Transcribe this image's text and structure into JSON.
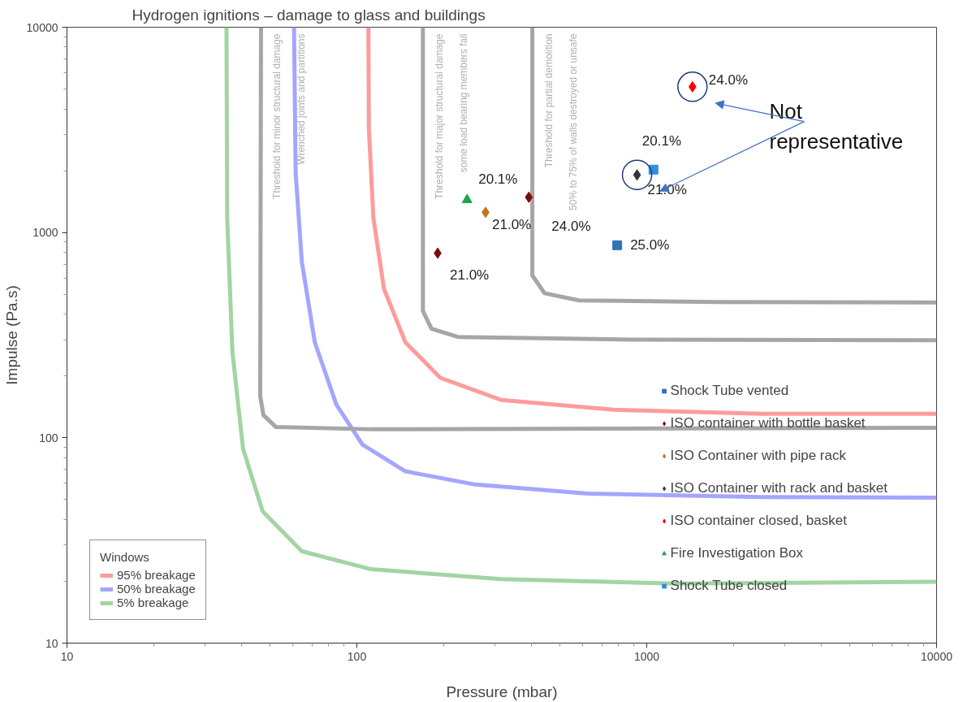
{
  "chart_data": {
    "type": "scatter",
    "title": "Hydrogen ignitions – damage to glass and buildings",
    "xlabel": "Pressure (mbar)",
    "ylabel": "Impulse (Pa.s)",
    "legend_title": "Windows",
    "log": "xy",
    "xlim": [
      10,
      10000
    ],
    "ylim": [
      10,
      10000
    ],
    "xticks": [
      10,
      100,
      1000,
      10000
    ],
    "yticks": [
      10,
      100,
      1000,
      10000
    ],
    "grid": false,
    "legend": "bottom right",
    "series": [
      {
        "name": "Shock Tube vented",
        "marker": "square",
        "color": "#2e75b6",
        "x": [
          791
        ],
        "values": [
          867
        ]
      },
      {
        "name": "ISO container with bottle basket",
        "marker": "diamond",
        "color": "#7b0c0c",
        "x": [
          190,
          392
        ],
        "values": [
          793,
          1486
        ]
      },
      {
        "name": "ISO Container with pipe rack",
        "marker": "diamond",
        "color": "#c0741c",
        "x": [
          278
        ],
        "values": [
          1254
        ]
      },
      {
        "name": "ISO Container with rack and basket",
        "marker": "diamond",
        "color": "#333333",
        "x": [
          926
        ],
        "values": [
          1908
        ]
      },
      {
        "name": "ISO container closed, basket",
        "marker": "diamond",
        "color": "#ff0000",
        "x": [
          1438
        ],
        "values": [
          5126
        ]
      },
      {
        "name": "Fire Investigation Box",
        "marker": "triangle",
        "color": "#1aa550",
        "x": [
          240
        ],
        "values": [
          1443
        ]
      },
      {
        "name": "Shock Tube closed",
        "marker": "square",
        "color": "#2f8fe0",
        "x": [
          1055
        ],
        "values": [
          2025
        ]
      },
      {
        "name": "95% breakage",
        "type": "line",
        "color": "#ff9b9b",
        "x": [
          109.6,
          110,
          114,
          124,
          147,
          194,
          314,
          769,
          2477,
          10000
        ],
        "values": [
          10000,
          3206,
          1181,
          532,
          292,
          196,
          153,
          137,
          131,
          131
        ]
      },
      {
        "name": "50% breakage",
        "type": "line",
        "color": "#a5a5ff",
        "x": [
          60.7,
          61.5,
          64.6,
          71.6,
          85,
          104.5,
          147,
          256,
          625,
          2477,
          10000
        ],
        "values": [
          10000,
          1945,
          718,
          292,
          145,
          92.7,
          68.7,
          59.2,
          53.5,
          51.4,
          51.1
        ]
      },
      {
        "name": "5% breakage",
        "type": "line",
        "color": "#a3d4a3",
        "x": [
          35.5,
          35.7,
          37.2,
          40.5,
          47.3,
          64.6,
          112,
          314,
          1245,
          10000
        ],
        "values": [
          10000,
          1181,
          264,
          88.2,
          43.9,
          28,
          22.9,
          20.5,
          19.5,
          19.9
        ]
      },
      {
        "type": "line",
        "color": "#a6a6a6",
        "x": [
          46.7,
          46.4,
          47.6,
          52.5,
          112,
          10000
        ],
        "values": [
          10000,
          160,
          129,
          113,
          110,
          112
        ]
      },
      {
        "type": "line",
        "color": "#a6a6a6",
        "x": [
          169,
          169,
          181,
          223,
          883,
          10000
        ],
        "values": [
          10000,
          414,
          340,
          310,
          301,
          299
        ]
      },
      {
        "type": "line",
        "color": "#a6a6a6",
        "x": [
          403,
          403,
          444,
          584,
          1758,
          10000
        ],
        "values": [
          10000,
          618,
          506,
          467,
          458,
          456
        ]
      }
    ],
    "annotations": [
      "Threshold for minor structural damage",
      "Wrenched joints and partitions",
      "Threshold for major structural damage",
      "some load bearing members fail",
      "Threshold for partial demolition",
      "50% to 75% of walls destroyed or unsafe",
      "Not representative",
      {
        "text": "25.0%",
        "x": 791,
        "y": 867
      },
      {
        "text": "21.0%",
        "x": 190,
        "y": 793
      },
      {
        "text": "24.0%",
        "x": 392,
        "y": 1486
      },
      {
        "text": "21.0%",
        "x": 278,
        "y": 1254
      },
      {
        "text": "21.0%",
        "x": 926,
        "y": 1908
      },
      {
        "text": "24.0%",
        "x": 1438,
        "y": 5126
      },
      {
        "text": "20.1%",
        "x": 240,
        "y": 1443
      },
      {
        "text": "20.1%",
        "x": 1055,
        "y": 2025
      }
    ]
  }
}
